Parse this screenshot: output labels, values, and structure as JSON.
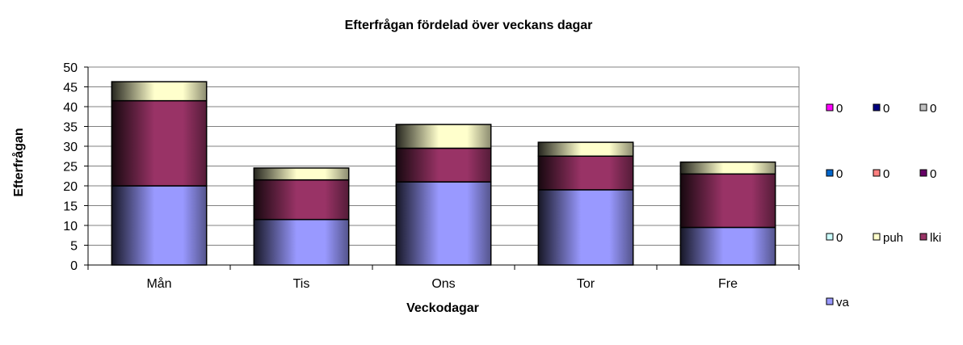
{
  "chart_data": {
    "type": "bar",
    "stacked": true,
    "title": "Efterfrågan fördelad över veckans dagar",
    "xlabel": "Veckodagar",
    "ylabel": "Efterfrågan",
    "ylim": [
      0,
      50
    ],
    "ytick_step": 5,
    "grid": true,
    "legend_position": "right",
    "categories": [
      "Mån",
      "Tis",
      "Ons",
      "Tor",
      "Fre"
    ],
    "series": [
      {
        "name": "va",
        "color": "#9999ff",
        "values": [
          20,
          11.5,
          21,
          19,
          9.5
        ]
      },
      {
        "name": "lki",
        "color": "#993366",
        "values": [
          21.5,
          10,
          8.5,
          8.5,
          13.5
        ]
      },
      {
        "name": "puh",
        "color": "#ffffcc",
        "values": [
          4.8,
          3,
          6,
          3.5,
          3
        ]
      }
    ],
    "legend_entries": [
      {
        "label": "0",
        "color": "#ff00ff"
      },
      {
        "label": "0",
        "color": "#000080"
      },
      {
        "label": "0",
        "color": "#c0c0c0"
      },
      {
        "label": "0",
        "color": "#0066cc"
      },
      {
        "label": "0",
        "color": "#ff8080"
      },
      {
        "label": "0",
        "color": "#660066"
      },
      {
        "label": "0",
        "color": "#ccffff"
      },
      {
        "label": "puh",
        "color": "#ffffcc"
      },
      {
        "label": "lki",
        "color": "#993366"
      },
      {
        "label": "va",
        "color": "#9999ff"
      }
    ]
  }
}
